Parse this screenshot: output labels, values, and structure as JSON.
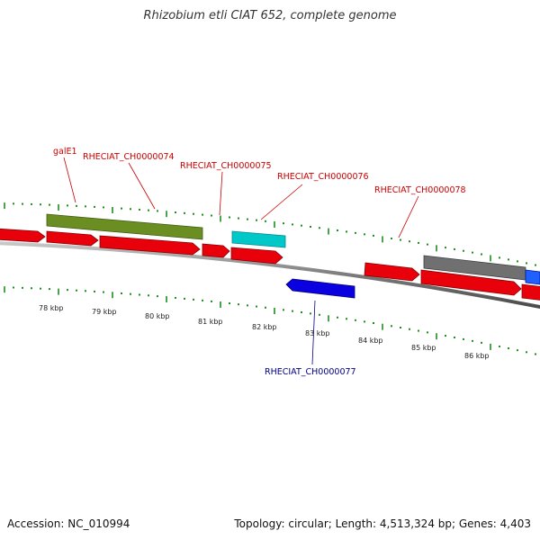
{
  "title": "Rhizobium etli CIAT 652, complete genome",
  "footer": {
    "accession": "Accession: NC_010994",
    "summary": "Topology: circular; Length: 4,513,324 bp; Genes: 4,403"
  },
  "kbp_labels": [
    "78 kbp",
    "79 kbp",
    "80 kbp",
    "81 kbp",
    "82 kbp",
    "83 kbp",
    "84 kbp",
    "85 kbp",
    "86 kbp"
  ],
  "gene_labels": [
    {
      "text": "galE1",
      "color": "#cc0000"
    },
    {
      "text": "RHECIAT_CH0000074",
      "color": "#cc0000"
    },
    {
      "text": "RHECIAT_CH0000075",
      "color": "#cc0000"
    },
    {
      "text": "RHECIAT_CH0000076",
      "color": "#cc0000"
    },
    {
      "text": "RHECIAT_CH0000078",
      "color": "#cc0000"
    },
    {
      "text": "RHECIAT_CH0000077",
      "color": "#00008b"
    }
  ],
  "colors": {
    "cds_forward": "#e8000b",
    "cds_reverse": "#0a00e0",
    "olive_feature": "#6b8e23",
    "cyan_feature": "#00c8c8",
    "gray_feature": "#707070",
    "tick_green": "#1e8c1e",
    "backbone": "#808080"
  }
}
